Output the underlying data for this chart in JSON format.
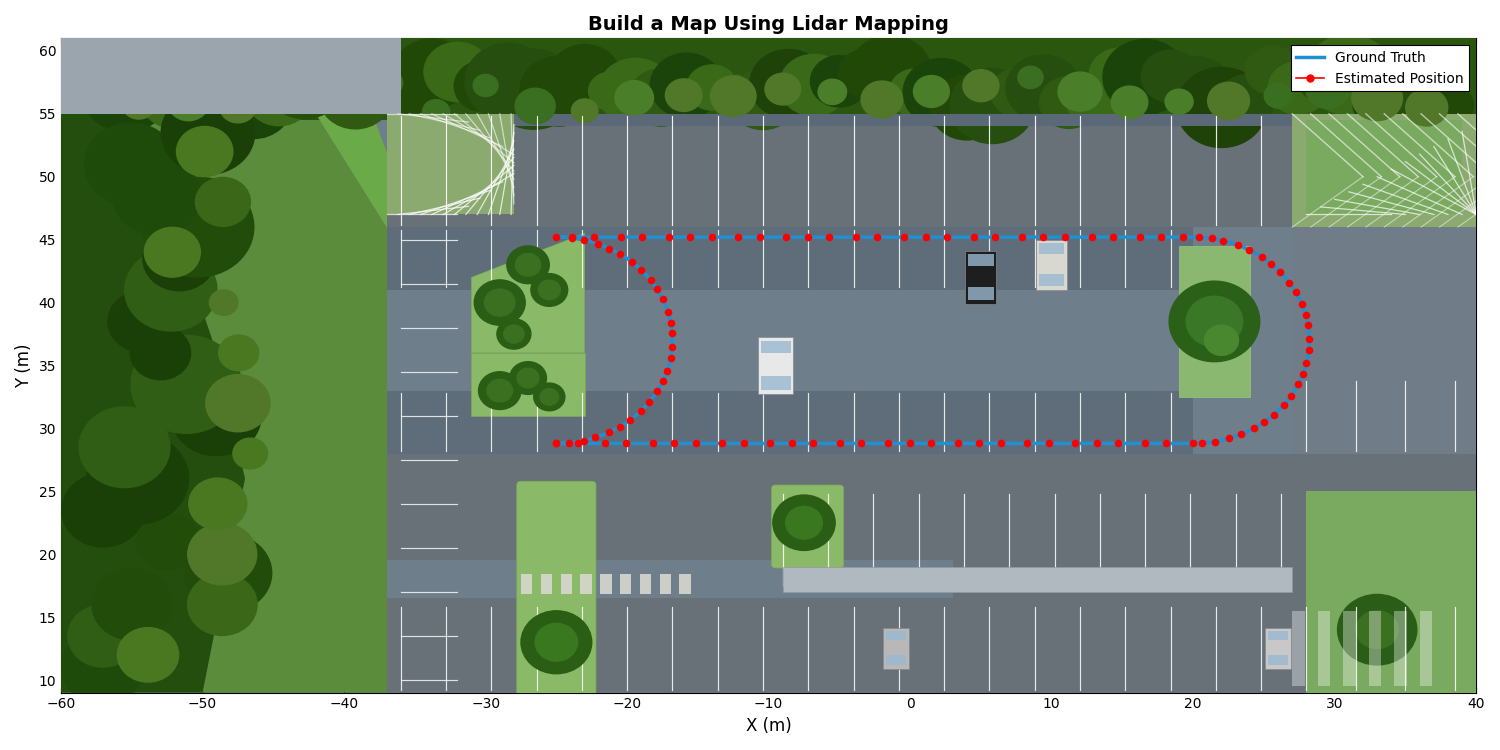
{
  "title": "Build a Map Using Lidar Mapping",
  "xlabel": "X (m)",
  "ylabel": "Y (m)",
  "xlim": [
    -60,
    40
  ],
  "ylim": [
    9,
    61
  ],
  "xticks": [
    -60,
    -50,
    -40,
    -30,
    -20,
    -10,
    0,
    10,
    20,
    30,
    40
  ],
  "yticks": [
    10,
    15,
    20,
    25,
    30,
    35,
    40,
    45,
    50,
    55,
    60
  ],
  "ground_truth_color": "#2090d0",
  "estimated_color": "#ff0000",
  "ground_truth_lw": 2.5,
  "dot_size": 5.5,
  "fig_width": 15.0,
  "fig_height": 7.5,
  "dpi": 100,
  "asphalt": "#6e7e8a",
  "asphalt2": "#687078",
  "asphalt3": "#5e6d79",
  "grass_light": "#6a9a40",
  "grass_med": "#4a7a28",
  "grass_dark": "#2a5a10",
  "tree_dark": "#1e4a0a",
  "tree_med": "#2a5e12",
  "tree_bright": "#3a7020",
  "concrete_light": "#a0aab0",
  "concrete_med": "#909aa5",
  "concrete_dark": "#808890",
  "island_grass": "#7aaa60",
  "island_grass2": "#5a9040",
  "white": "#ffffff",
  "hatch_bg": "#8aaa70",
  "stripe_white": "#e8e8e0",
  "curb_gray": "#909898"
}
